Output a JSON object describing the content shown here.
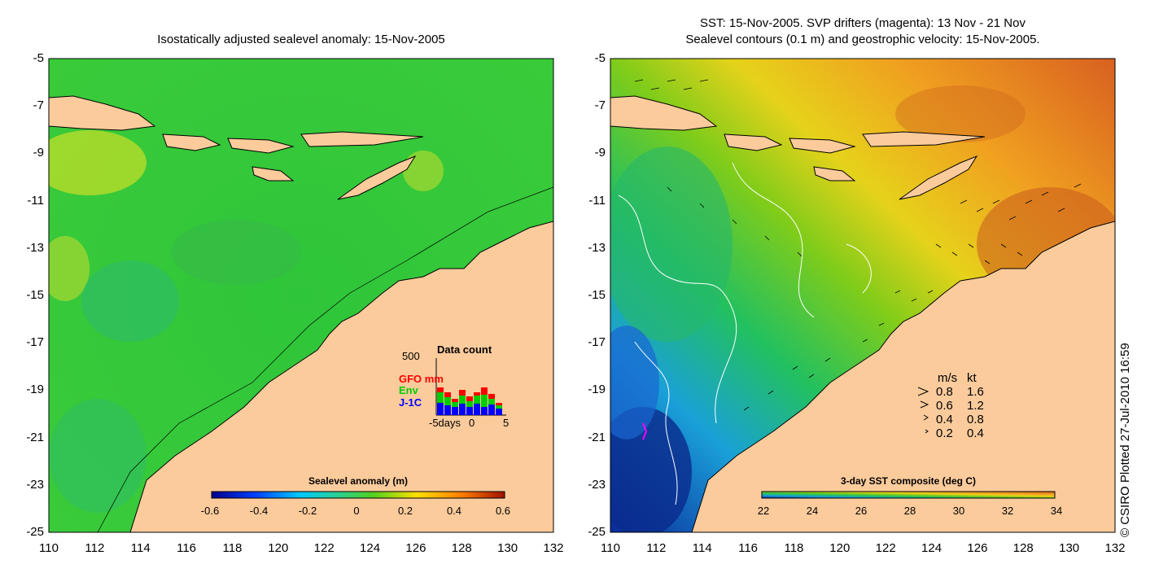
{
  "left_panel": {
    "title": "Isostatically adjusted sealevel anomaly: 15-Nov-2005",
    "colorbar_title": "Sealevel anomaly (m)",
    "colorbar_ticks": [
      "-0.6",
      "-0.4",
      "-0.2",
      "0",
      "0.2",
      "0.4",
      "0.6"
    ],
    "data_count": {
      "title": "Data count",
      "ymax_label": "500",
      "series_labels": [
        "GFO mm",
        "Env",
        "J-1C"
      ],
      "series_colors": [
        "#ff0000",
        "#00cc00",
        "#0000ff"
      ],
      "xticks": [
        "-5days",
        "0",
        "5"
      ]
    }
  },
  "right_panel": {
    "title_line1": "SST: 15-Nov-2005. SVP drifters (magenta): 13 Nov - 21 Nov",
    "title_line2": "Sealevel contours (0.1 m) and geostrophic velocity: 15-Nov-2005.",
    "colorbar_title": "3-day SST composite (deg C)",
    "colorbar_ticks": [
      "22",
      "24",
      "26",
      "28",
      "30",
      "32",
      "34"
    ],
    "velocity_legend": {
      "header_ms": "m/s",
      "header_kt": "kt",
      "rows": [
        {
          "ms": "0.8",
          "kt": "1.6"
        },
        {
          "ms": "0.6",
          "kt": "1.2"
        },
        {
          "ms": "0.4",
          "kt": "0.8"
        },
        {
          "ms": "0.2",
          "kt": "0.4"
        }
      ]
    }
  },
  "y_ticks": [
    "-5",
    "-7",
    "-9",
    "-11",
    "-13",
    "-15",
    "-17",
    "-19",
    "-21",
    "-23",
    "-25"
  ],
  "x_ticks": [
    "110",
    "112",
    "114",
    "116",
    "118",
    "120",
    "122",
    "124",
    "126",
    "128",
    "130",
    "132"
  ],
  "credit": "© CSIRO Plotted 27-Jul-2010 16:59",
  "colors": {
    "land": "#fbcb9c",
    "sla_ocean": "#33cc33",
    "sst_warm": "#f2a020",
    "sst_cool": "#1a5fd8"
  }
}
